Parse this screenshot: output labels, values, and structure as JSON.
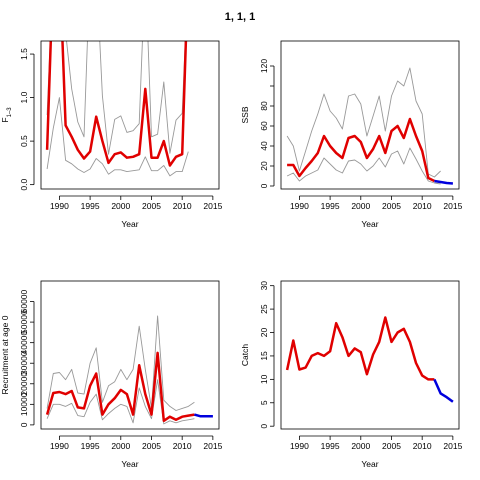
{
  "page_title": "1, 1, 1",
  "chart_data": [
    {
      "type": "line",
      "title": "",
      "xlabel": "Year",
      "ylabel": "F",
      "ylabel_sub": "1–3",
      "xlim": [
        1987,
        2016
      ],
      "ylim": [
        -0.05,
        1.65
      ],
      "xticks": [
        1990,
        1995,
        2000,
        2005,
        2010,
        2015
      ],
      "yticks": [
        0.0,
        0.5,
        1.0,
        1.5
      ],
      "ytick_labels": [
        "0.0",
        "0.5",
        "1.0",
        "1.5"
      ],
      "colors": {
        "estimate": "#e00000",
        "bounds": "#999999",
        "forecast": "#0000dd"
      },
      "series": [
        {
          "role": "estimate",
          "x": [
            1988,
            1989,
            1990,
            1991,
            1992,
            1993,
            1994,
            1995,
            1996,
            1997,
            1998,
            1999,
            2000,
            2001,
            2002,
            2003,
            2004,
            2005,
            2006,
            2007,
            2008,
            2009,
            2010,
            2011
          ],
          "values": [
            0.4,
            2.5,
            2.6,
            0.68,
            0.55,
            0.4,
            0.3,
            0.38,
            0.78,
            0.5,
            0.25,
            0.35,
            0.37,
            0.31,
            0.32,
            0.35,
            1.1,
            0.31,
            0.31,
            0.5,
            0.22,
            0.32,
            0.35,
            2.5
          ]
        },
        {
          "role": "upper",
          "x": [
            1988,
            1989,
            1990,
            1991,
            1992,
            1993,
            1994,
            1995,
            1996,
            1997,
            1998,
            1999,
            2000,
            2001,
            2002,
            2003,
            2004,
            2005,
            2006,
            2007,
            2008,
            2009,
            2010,
            2011
          ],
          "values": [
            0.8,
            2.5,
            2.6,
            1.75,
            1.1,
            0.72,
            0.55,
            2.5,
            2.5,
            1.02,
            0.35,
            0.75,
            0.79,
            0.6,
            0.62,
            0.7,
            2.5,
            0.55,
            0.58,
            1.18,
            0.36,
            0.74,
            0.82,
            2.5
          ]
        },
        {
          "role": "lower",
          "x": [
            1988,
            1989,
            1990,
            1991,
            1992,
            1993,
            1994,
            1995,
            1996,
            1997,
            1998,
            1999,
            2000,
            2001,
            2002,
            2003,
            2004,
            2005,
            2006,
            2007,
            2008,
            2009,
            2010,
            2011
          ],
          "values": [
            0.18,
            0.65,
            1.0,
            0.28,
            0.24,
            0.18,
            0.14,
            0.18,
            0.3,
            0.24,
            0.12,
            0.17,
            0.17,
            0.15,
            0.16,
            0.17,
            0.32,
            0.16,
            0.16,
            0.22,
            0.1,
            0.15,
            0.15,
            0.38
          ]
        }
      ]
    },
    {
      "type": "line",
      "title": "",
      "xlabel": "Year",
      "ylabel": "SSB",
      "xlim": [
        1987,
        2016
      ],
      "ylim": [
        -3,
        145
      ],
      "xticks": [
        1990,
        1995,
        2000,
        2005,
        2010,
        2015
      ],
      "yticks": [
        0,
        20,
        40,
        60,
        80,
        100,
        120
      ],
      "ytick_labels": [
        "0",
        "20",
        "40",
        "60",
        "80",
        "",
        "120"
      ],
      "colors": {
        "estimate": "#e00000",
        "bounds": "#999999",
        "forecast": "#0000dd"
      },
      "series": [
        {
          "role": "estimate",
          "x": [
            1988,
            1989,
            1990,
            1991,
            1992,
            1993,
            1994,
            1995,
            1996,
            1997,
            1998,
            1999,
            2000,
            2001,
            2002,
            2003,
            2004,
            2005,
            2006,
            2007,
            2008,
            2009,
            2010,
            2011,
            2012
          ],
          "values": [
            21,
            21,
            10,
            18,
            25,
            33,
            50,
            40,
            33,
            28,
            48,
            50,
            44,
            28,
            37,
            50,
            33,
            55,
            60,
            48,
            67,
            50,
            35,
            8,
            5
          ]
        },
        {
          "role": "forecast",
          "x": [
            2012,
            2013,
            2014,
            2015
          ],
          "values": [
            5,
            4,
            3,
            2.5
          ]
        },
        {
          "role": "upper",
          "x": [
            1988,
            1989,
            1990,
            1991,
            1992,
            1993,
            1994,
            1995,
            1996,
            1997,
            1998,
            1999,
            2000,
            2001,
            2002,
            2003,
            2004,
            2005,
            2006,
            2007,
            2008,
            2009,
            2010,
            2011,
            2012,
            2013
          ],
          "values": [
            50,
            40,
            15,
            35,
            55,
            72,
            92,
            75,
            68,
            57,
            90,
            92,
            82,
            50,
            70,
            90,
            55,
            90,
            105,
            100,
            118,
            85,
            72,
            12,
            9,
            15
          ]
        },
        {
          "role": "lower",
          "x": [
            1988,
            1989,
            1990,
            1991,
            1992,
            1993,
            1994,
            1995,
            1996,
            1997,
            1998,
            1999,
            2000,
            2001,
            2002,
            2003,
            2004,
            2005,
            2006,
            2007,
            2008,
            2009,
            2010,
            2011,
            2012,
            2013
          ],
          "values": [
            10,
            13,
            5,
            10,
            13,
            16,
            28,
            22,
            16,
            13,
            25,
            26,
            22,
            15,
            20,
            28,
            19,
            32,
            35,
            22,
            38,
            27,
            15,
            5,
            3,
            2
          ]
        }
      ]
    },
    {
      "type": "line",
      "title": "",
      "xlabel": "Year",
      "ylabel": "Recruitment at age 0",
      "xlim": [
        1987,
        2016
      ],
      "ylim": [
        -2000,
        70000
      ],
      "xticks": [
        1990,
        1995,
        2000,
        2005,
        2010,
        2015
      ],
      "yticks": [
        0,
        10000,
        20000,
        30000,
        40000,
        50000,
        60000
      ],
      "ytick_labels": [
        "0",
        "10000",
        "20000",
        "30000",
        "40000",
        "50000",
        "60000"
      ],
      "colors": {
        "estimate": "#e00000",
        "bounds": "#999999",
        "forecast": "#0000dd"
      },
      "series": [
        {
          "role": "estimate",
          "x": [
            1988,
            1989,
            1990,
            1991,
            1992,
            1993,
            1994,
            1995,
            1996,
            1997,
            1998,
            1999,
            2000,
            2001,
            2002,
            2003,
            2004,
            2005,
            2006,
            2007,
            2008,
            2009,
            2010,
            2011,
            2012
          ],
          "values": [
            5000,
            15500,
            16000,
            15000,
            16500,
            8500,
            8000,
            19000,
            25000,
            5000,
            10000,
            13000,
            17000,
            15000,
            5000,
            29000,
            15000,
            5000,
            35000,
            2000,
            4000,
            2500,
            4000,
            4500,
            5000
          ]
        },
        {
          "role": "forecast",
          "x": [
            2012,
            2013,
            2014,
            2015
          ],
          "values": [
            5000,
            4200,
            4200,
            4200
          ]
        },
        {
          "role": "upper",
          "x": [
            1988,
            1989,
            1990,
            1991,
            1992,
            1993,
            1994,
            1995,
            1996,
            1997,
            1998,
            1999,
            2000,
            2001,
            2002,
            2003,
            2004,
            2005,
            2006,
            2007,
            2008,
            2009,
            2010,
            2011,
            2012
          ],
          "values": [
            8000,
            25000,
            25500,
            22000,
            27000,
            15500,
            15000,
            30000,
            37500,
            11000,
            19000,
            21000,
            27000,
            22000,
            27000,
            48000,
            27000,
            8000,
            53000,
            12000,
            9000,
            7000,
            8000,
            9000,
            11000
          ]
        },
        {
          "role": "lower",
          "x": [
            1988,
            1989,
            1990,
            1991,
            1992,
            1993,
            1994,
            1995,
            1996,
            1997,
            1998,
            1999,
            2000,
            2001,
            2002,
            2003,
            2004,
            2005,
            2006,
            2007,
            2008,
            2009,
            2010,
            2011,
            2012
          ],
          "values": [
            3000,
            10000,
            10000,
            9000,
            10500,
            4500,
            4000,
            11000,
            15000,
            2500,
            5500,
            8000,
            10000,
            9000,
            1000,
            18000,
            9000,
            3000,
            22000,
            500,
            2000,
            1000,
            2000,
            2500,
            3000
          ]
        }
      ]
    },
    {
      "type": "line",
      "title": "",
      "xlabel": "Year",
      "ylabel": "Catch",
      "xlim": [
        1987,
        2016
      ],
      "ylim": [
        -0.6,
        31
      ],
      "xticks": [
        1990,
        1995,
        2000,
        2005,
        2010,
        2015
      ],
      "yticks": [
        0,
        5,
        10,
        15,
        20,
        25,
        30
      ],
      "ytick_labels": [
        "0",
        "5",
        "10",
        "15",
        "20",
        "25",
        "30"
      ],
      "colors": {
        "estimate": "#e00000",
        "forecast": "#0000dd"
      },
      "series": [
        {
          "role": "estimate",
          "x": [
            1988,
            1989,
            1990,
            1991,
            1992,
            1993,
            1994,
            1995,
            1996,
            1997,
            1998,
            1999,
            2000,
            2001,
            2002,
            2003,
            2004,
            2005,
            2006,
            2007,
            2008,
            2009,
            2010,
            2011,
            2012
          ],
          "values": [
            12,
            18.3,
            12.1,
            12.5,
            15,
            15.6,
            15,
            16,
            22,
            19,
            15,
            16.6,
            15.8,
            11.1,
            15.3,
            18,
            23.2,
            18,
            20,
            20.8,
            18,
            13.5,
            10.8,
            10,
            10
          ]
        },
        {
          "role": "forecast",
          "x": [
            2012,
            2013,
            2014,
            2015
          ],
          "values": [
            10,
            7,
            6.2,
            5.2
          ]
        }
      ]
    }
  ]
}
